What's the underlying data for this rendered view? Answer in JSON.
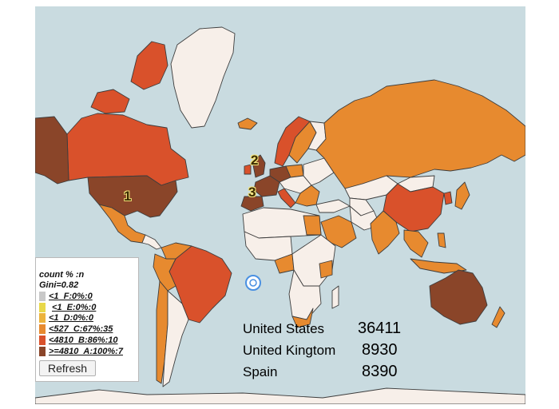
{
  "map": {
    "ranks": [
      "1",
      "2",
      "3"
    ],
    "colors": {
      "ocean": "#c9dbe0",
      "none": "#f7efe9",
      "cat_F": "#c8c8c8",
      "cat_E": "#e8d84a",
      "cat_D": "#ecb33c",
      "cat_C": "#e78a2f",
      "cat_B": "#d9512b",
      "cat_A": "#8a4529"
    }
  },
  "legend": {
    "header": "count % :n",
    "gini": "Gini=0.82",
    "items": [
      {
        "label": "<1_F:0%:0",
        "color": "#c8c8c8"
      },
      {
        "label": "<1_E:0%:0",
        "color": "#e8d84a"
      },
      {
        "label": "<1_D:0%:0",
        "color": "#ecb33c"
      },
      {
        "label": "<527_C:67%:35",
        "color": "#e78a2f"
      },
      {
        "label": "<4810_B:86%:10",
        "color": "#d9512b"
      },
      {
        "label": ">=4810_A:100%:7",
        "color": "#8a4529"
      }
    ],
    "refresh_label": "Refresh"
  },
  "stats": [
    {
      "country": "United States",
      "value": "36411"
    },
    {
      "country": "United Kingtom",
      "value": "8930"
    },
    {
      "country": "Spain",
      "value": "8390"
    }
  ]
}
